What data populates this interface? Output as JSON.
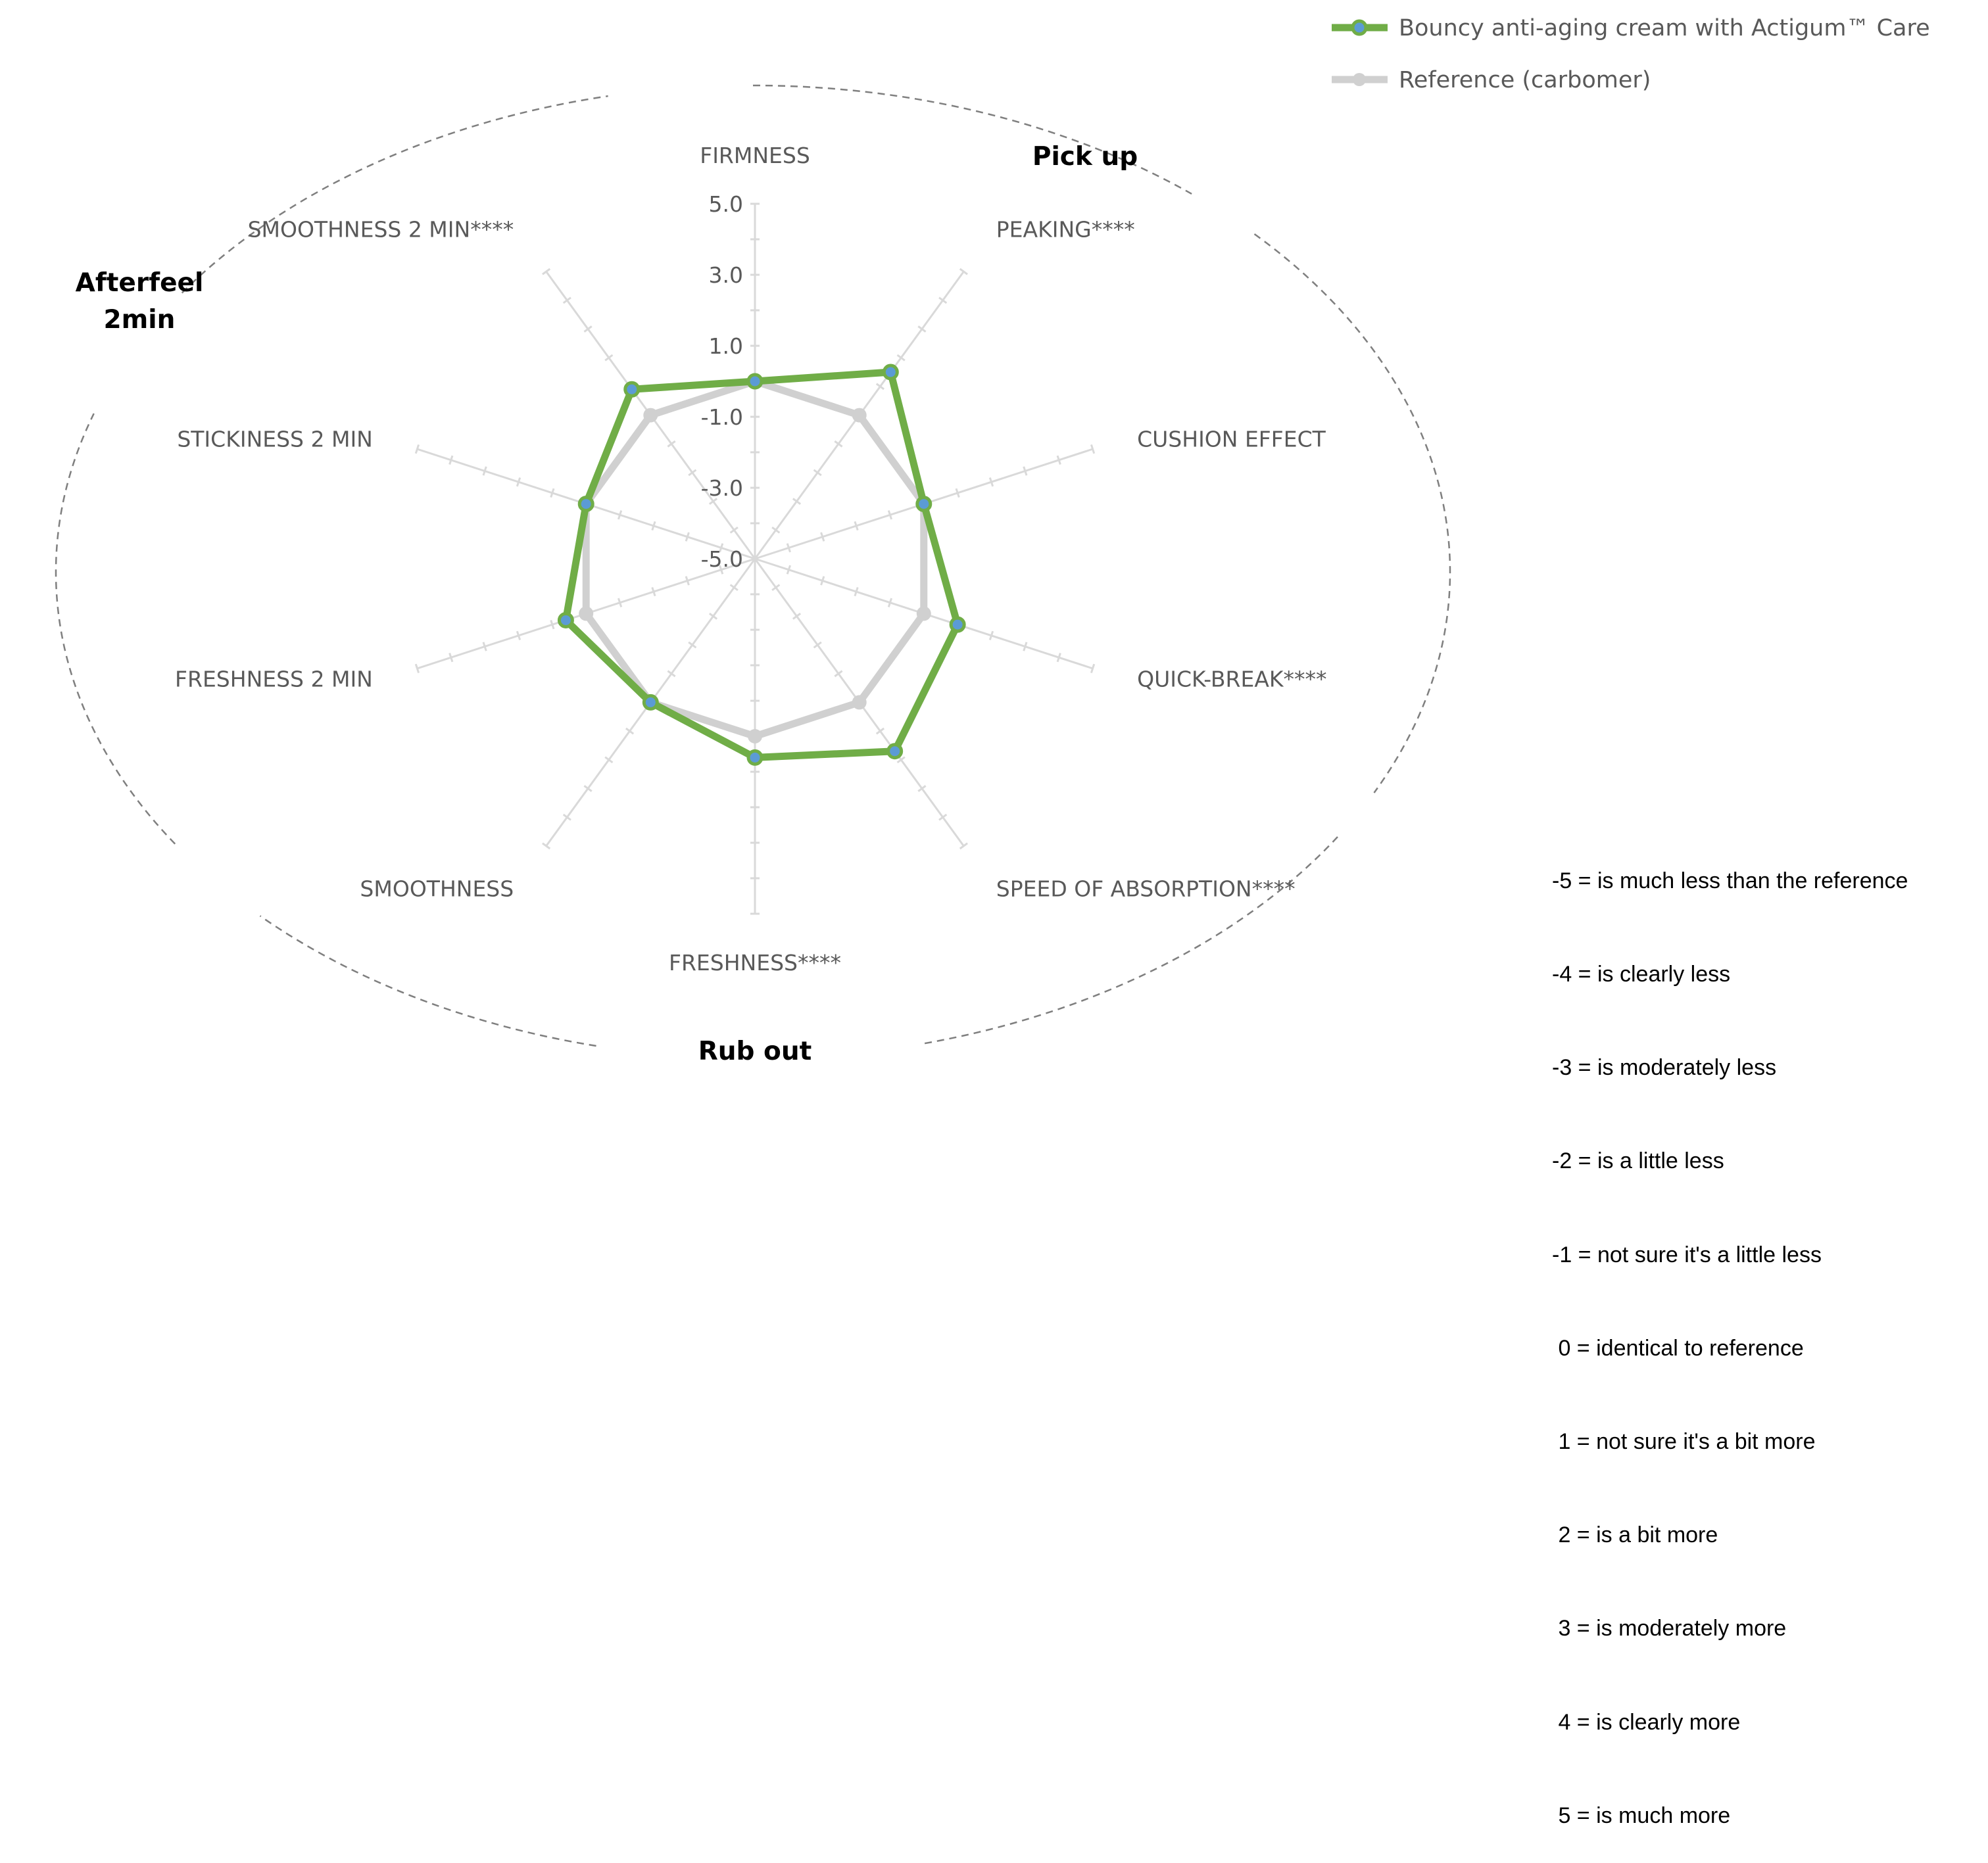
{
  "chart_data": {
    "type": "radar",
    "axes": [
      "FIRMNESS",
      "PEAKING****",
      "CUSHION EFFECT",
      "QUICK-BREAK****",
      "SPEED OF ABSORPTION****",
      "FRESHNESS****",
      "SMOOTHNESS",
      "FRESHNESS 2 MIN",
      "STICKINESS 2 MIN",
      "SMOOTHNESS 2 MIN****"
    ],
    "tick_labels": [
      "5.0",
      "3.0",
      "1.0",
      "-1.0",
      "-3.0",
      "-5.0"
    ],
    "rlim": [
      -5,
      5
    ],
    "series": [
      {
        "name": "Bouncy anti-aging cream with Actigum™ Care",
        "color": "#70ad47",
        "marker_color": "#5b9bd5",
        "values": [
          0,
          1.5,
          0,
          1,
          1.7,
          0.6,
          0,
          0.6,
          0,
          0.9
        ]
      },
      {
        "name": "Reference (carbomer)",
        "color": "#d0d0d0",
        "values": [
          0,
          0,
          0,
          0,
          0,
          0,
          0,
          0,
          0,
          0
        ]
      }
    ],
    "groups": [
      {
        "label": "Pick up"
      },
      {
        "label": "Rub out"
      },
      {
        "label": "Afterfeel\n2min"
      }
    ],
    "legend_position": "top-right",
    "grid": true
  },
  "legend": [
    {
      "label": "Bouncy anti-aging cream with Actigum™ Care"
    },
    {
      "label": "Reference (carbomer)"
    }
  ],
  "scale_key": [
    "-5 = is much less than the reference",
    "-4 = is clearly less",
    "-3 = is moderately less",
    "-2 = is a little less",
    "-1 = not sure it's a little less",
    " 0 = identical to reference",
    " 1 = not sure it's a bit more",
    " 2 = is a bit more",
    " 3 = is moderately more",
    " 4 = is clearly more",
    " 5 = is much more"
  ]
}
